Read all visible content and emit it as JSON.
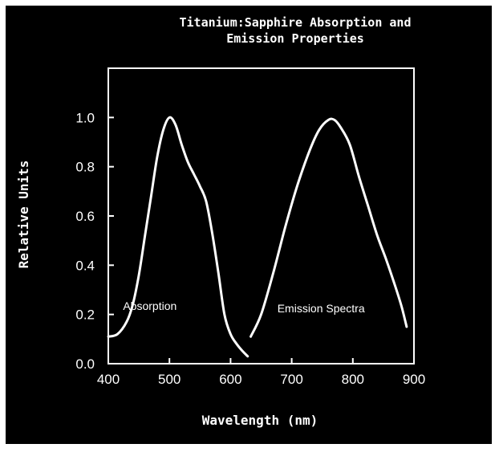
{
  "chart_data": {
    "type": "line",
    "title": "Titanium:Sapphire Absorption and",
    "subtitle": "Emission Properties",
    "xlabel": "Wavelength (nm)",
    "ylabel": "Relative Units",
    "xlim": [
      400,
      900
    ],
    "ylim": [
      0.0,
      1.2
    ],
    "x_ticks": [
      "400",
      "500",
      "600",
      "700",
      "800",
      "900"
    ],
    "y_ticks": [
      "0.0",
      "0.2",
      "0.4",
      "0.6",
      "0.8",
      "1.0"
    ],
    "grid": false,
    "colors": {
      "background": "#000000",
      "foreground": "#ffffff",
      "border": "#ffffff"
    },
    "series": [
      {
        "name": "Absorption",
        "points": [
          [
            400,
            0.11
          ],
          [
            415,
            0.12
          ],
          [
            430,
            0.17
          ],
          [
            440,
            0.24
          ],
          [
            450,
            0.36
          ],
          [
            460,
            0.52
          ],
          [
            470,
            0.68
          ],
          [
            480,
            0.84
          ],
          [
            490,
            0.95
          ],
          [
            500,
            1.0
          ],
          [
            510,
            0.97
          ],
          [
            520,
            0.89
          ],
          [
            530,
            0.82
          ],
          [
            540,
            0.77
          ],
          [
            550,
            0.72
          ],
          [
            560,
            0.66
          ],
          [
            570,
            0.53
          ],
          [
            580,
            0.37
          ],
          [
            590,
            0.2
          ],
          [
            600,
            0.12
          ],
          [
            610,
            0.08
          ],
          [
            620,
            0.05
          ],
          [
            628,
            0.03
          ]
        ]
      },
      {
        "name": "Emission Spectra",
        "points": [
          [
            633,
            0.11
          ],
          [
            650,
            0.2
          ],
          [
            670,
            0.37
          ],
          [
            690,
            0.56
          ],
          [
            710,
            0.73
          ],
          [
            730,
            0.87
          ],
          [
            745,
            0.95
          ],
          [
            760,
            0.99
          ],
          [
            770,
            0.99
          ],
          [
            780,
            0.96
          ],
          [
            795,
            0.89
          ],
          [
            810,
            0.76
          ],
          [
            825,
            0.64
          ],
          [
            840,
            0.52
          ],
          [
            855,
            0.42
          ],
          [
            870,
            0.31
          ],
          [
            880,
            0.23
          ],
          [
            888,
            0.15
          ]
        ]
      }
    ],
    "annotations": [
      {
        "text": "Absorption",
        "x": 468,
        "y": 0.235
      },
      {
        "text": "Emission Spectra",
        "x": 748,
        "y": 0.225
      }
    ]
  }
}
